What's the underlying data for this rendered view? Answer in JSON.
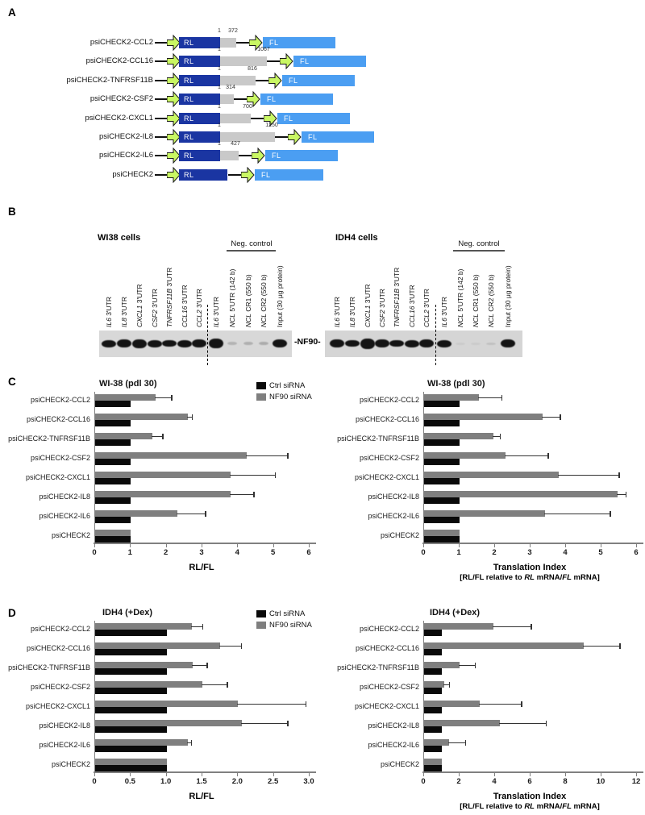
{
  "panels": {
    "a": {
      "label": "A"
    },
    "b": {
      "label": "B"
    },
    "c": {
      "label": "C"
    },
    "d": {
      "label": "D"
    }
  },
  "construct_diagram": {
    "rl_label": "RL",
    "fl_label": "FL",
    "colors": {
      "rl_box": "#1a35a2",
      "fl_box": "#4b9ef2",
      "utr_box": "#c9c9c9",
      "promoter_arrow": "#c9f763"
    },
    "constructs": [
      {
        "name": "psiCHECK2-CCL2",
        "utr_start": "1",
        "utr_end": "372",
        "utr_len": 372
      },
      {
        "name": "psiCHECK2-CCL16",
        "utr_start": "1",
        "utr_end": "1067",
        "utr_len": 1067
      },
      {
        "name": "psiCHECK2-TNFRSF11B",
        "utr_start": "1",
        "utr_end": "816",
        "utr_len": 816
      },
      {
        "name": "psiCHECK2-CSF2",
        "utr_start": "1",
        "utr_end": "314",
        "utr_len": 314
      },
      {
        "name": "psiCHECK2-CXCL1",
        "utr_start": "1",
        "utr_end": "700",
        "utr_len": 700
      },
      {
        "name": "psiCHECK2-IL8",
        "utr_start": "1",
        "utr_end": "1250",
        "utr_len": 1250
      },
      {
        "name": "psiCHECK2-IL6",
        "utr_start": "1",
        "utr_end": "427",
        "utr_len": 427
      },
      {
        "name": "psiCHECK2",
        "utr_start": null,
        "utr_end": null,
        "utr_len": 0
      }
    ]
  },
  "blot_section": {
    "band_label": "-NF90-",
    "blots": [
      {
        "title": "WI38 cells",
        "neg_control_label": "Neg. control",
        "lanes": [
          {
            "segments": [
              {
                "t": "IL6",
                "i": true
              },
              {
                "t": " 3'UTR",
                "i": false
              }
            ],
            "band": 1
          },
          {
            "segments": [
              {
                "t": "IL8",
                "i": true
              },
              {
                "t": " 3'UTR",
                "i": false
              }
            ],
            "band": 1
          },
          {
            "segments": [
              {
                "t": "CXCL1",
                "i": true
              },
              {
                "t": " 3'UTR",
                "i": false
              }
            ],
            "band": 1
          },
          {
            "segments": [
              {
                "t": "CSF2",
                "i": true
              },
              {
                "t": " 3'UTR",
                "i": false
              }
            ],
            "band": 1
          },
          {
            "segments": [
              {
                "t": "TNFRSF11B",
                "i": true
              },
              {
                "t": " 3'UTR",
                "i": false
              }
            ],
            "band": 1
          },
          {
            "segments": [
              {
                "t": "CCL16",
                "i": true
              },
              {
                "t": " 3'UTR",
                "i": false
              }
            ],
            "band": 1
          },
          {
            "segments": [
              {
                "t": "CCL2",
                "i": true
              },
              {
                "t": " 3'UTR",
                "i": false
              }
            ],
            "band": 1
          },
          {
            "segments": [
              {
                "t": "IL6",
                "i": true
              },
              {
                "t": " 3'UTR",
                "i": false
              }
            ],
            "band": 1
          },
          {
            "segments": [
              {
                "t": "NCL",
                "i": true
              },
              {
                "t": " 5'UTR (142 b)",
                "i": false
              }
            ],
            "band": 0.18
          },
          {
            "segments": [
              {
                "t": "NCL",
                "i": true
              },
              {
                "t": " CR1 (550 b)",
                "i": false
              }
            ],
            "band": 0.2
          },
          {
            "segments": [
              {
                "t": "NCL",
                "i": true
              },
              {
                "t": " CR2 (550 b)",
                "i": false
              }
            ],
            "band": 0.22
          },
          {
            "segments": [
              {
                "t": "Input (30 μg protein)",
                "i": false
              }
            ],
            "band": 1
          }
        ]
      },
      {
        "title": "IDH4 cells",
        "neg_control_label": "Neg. control",
        "lanes": [
          {
            "segments": [
              {
                "t": "IL6",
                "i": true
              },
              {
                "t": " 3'UTR",
                "i": false
              }
            ],
            "band": 1
          },
          {
            "segments": [
              {
                "t": "IL8",
                "i": true
              },
              {
                "t": " 3'UTR",
                "i": false
              }
            ],
            "band": 1
          },
          {
            "segments": [
              {
                "t": "CXCL1",
                "i": true
              },
              {
                "t": " 3'UTR",
                "i": false
              }
            ],
            "band": 1
          },
          {
            "segments": [
              {
                "t": "CSF2",
                "i": true
              },
              {
                "t": " 3'UTR",
                "i": false
              }
            ],
            "band": 1
          },
          {
            "segments": [
              {
                "t": "TNFRSF11B",
                "i": true
              },
              {
                "t": " 3'UTR",
                "i": false
              }
            ],
            "band": 1
          },
          {
            "segments": [
              {
                "t": "CCL16",
                "i": true
              },
              {
                "t": " 3'UTR",
                "i": false
              }
            ],
            "band": 1
          },
          {
            "segments": [
              {
                "t": "CCL2",
                "i": true
              },
              {
                "t": " 3'UTR",
                "i": false
              }
            ],
            "band": 1
          },
          {
            "segments": [
              {
                "t": "IL6",
                "i": true
              },
              {
                "t": " 3'UTR",
                "i": false
              }
            ],
            "band": 1
          },
          {
            "segments": [
              {
                "t": "NCL",
                "i": true
              },
              {
                "t": " 5'UTR (142 b)",
                "i": false
              }
            ],
            "band": 0.05
          },
          {
            "segments": [
              {
                "t": "NCL",
                "i": true
              },
              {
                "t": " CR1 (550 b)",
                "i": false
              }
            ],
            "band": 0.05
          },
          {
            "segments": [
              {
                "t": "NCL",
                "i": true
              },
              {
                "t": " CR2 (550 b)",
                "i": false
              }
            ],
            "band": 0.1
          },
          {
            "segments": [
              {
                "t": "Input (30 μg protein)",
                "i": false
              }
            ],
            "band": 1
          }
        ]
      }
    ]
  },
  "legend": {
    "items": [
      {
        "label": "Ctrl siRNA",
        "color": "#0a0a0a"
      },
      {
        "label": "NF90 siRNA",
        "color": "#7f7f7f"
      }
    ]
  },
  "chart_data": [
    {
      "id": "wi38_rlfl",
      "type": "bar",
      "orientation": "horizontal",
      "title": "WI-38 (pdl 30)",
      "xlabel": "RL/FL",
      "xlim": [
        0,
        6
      ],
      "xticks": [
        "0",
        "1",
        "2",
        "3",
        "4",
        "5",
        "6"
      ],
      "legend_visible": true,
      "legend_position": "top-right",
      "grid": false,
      "categories": [
        "psiCHECK2-CCL2",
        "psiCHECK2-CCL16",
        "psiCHECK2-TNFRSF11B",
        "psiCHECK2-CSF2",
        "psiCHECK2-CXCL1",
        "psiCHECK2-IL8",
        "psiCHECK2-IL6",
        "psiCHECK2"
      ],
      "series": [
        {
          "name": "NF90 siRNA",
          "color": "#7f7f7f",
          "values": [
            1.7,
            2.6,
            1.6,
            4.25,
            3.8,
            3.8,
            2.3,
            1.0
          ],
          "errors": [
            0.45,
            0.12,
            0.3,
            1.15,
            1.25,
            0.65,
            0.8,
            0
          ]
        },
        {
          "name": "Ctrl siRNA",
          "color": "#0a0a0a",
          "values": [
            1,
            1,
            1,
            1,
            1,
            1,
            1,
            1
          ],
          "errors": [
            0,
            0,
            0,
            0,
            0,
            0,
            0,
            0
          ]
        }
      ]
    },
    {
      "id": "wi38_translation_index",
      "type": "bar",
      "orientation": "horizontal",
      "title": "WI-38 (pdl 30)",
      "xlabel": "Translation Index",
      "xlabel2_segments": [
        {
          "t": "[RL/FL relative to ",
          "i": false
        },
        {
          "t": "RL",
          "i": true
        },
        {
          "t": " mRNA/",
          "i": false
        },
        {
          "t": "FL",
          "i": true
        },
        {
          "t": " mRNA]",
          "i": false
        }
      ],
      "xlim": [
        0,
        6
      ],
      "xticks": [
        "0",
        "1",
        "2",
        "3",
        "4",
        "5",
        "6"
      ],
      "legend_visible": false,
      "grid": false,
      "categories": [
        "psiCHECK2-CCL2",
        "psiCHECK2-CCL16",
        "psiCHECK2-TNFRSF11B",
        "psiCHECK2-CSF2",
        "psiCHECK2-CXCL1",
        "psiCHECK2-IL8",
        "psiCHECK2-IL6",
        "psiCHECK2"
      ],
      "series": [
        {
          "name": "NF90 siRNA",
          "color": "#7f7f7f",
          "values": [
            1.55,
            3.35,
            1.95,
            2.3,
            3.8,
            5.45,
            3.4,
            1.0
          ],
          "errors": [
            0.65,
            0.5,
            0.2,
            1.2,
            1.7,
            0.25,
            1.85,
            0
          ]
        },
        {
          "name": "Ctrl siRNA",
          "color": "#0a0a0a",
          "values": [
            1,
            1,
            1,
            1,
            1,
            1,
            1,
            1
          ],
          "errors": [
            0,
            0,
            0,
            0,
            0,
            0,
            0,
            0
          ]
        }
      ]
    },
    {
      "id": "idh4_rlfl",
      "type": "bar",
      "orientation": "horizontal",
      "title": "IDH4 (+Dex)",
      "xlabel": "RL/FL",
      "xlim": [
        0,
        3
      ],
      "xticks": [
        "0",
        "0.5",
        "1.0",
        "1.5",
        "2.0",
        "2.5",
        "3.0"
      ],
      "legend_visible": true,
      "legend_position": "top-right",
      "grid": false,
      "categories": [
        "psiCHECK2-CCL2",
        "psiCHECK2-CCL16",
        "psiCHECK2-TNFRSF11B",
        "psiCHECK2-CSF2",
        "psiCHECK2-CXCL1",
        "psiCHECK2-IL8",
        "psiCHECK2-IL6",
        "psiCHECK2"
      ],
      "series": [
        {
          "name": "NF90 siRNA",
          "color": "#7f7f7f",
          "values": [
            1.35,
            1.75,
            1.37,
            1.5,
            2.0,
            2.05,
            1.3,
            1.0
          ],
          "errors": [
            0.16,
            0.3,
            0.2,
            0.35,
            0.95,
            0.65,
            0.05,
            0
          ]
        },
        {
          "name": "Ctrl siRNA",
          "color": "#0a0a0a",
          "values": [
            1,
            1,
            1,
            1,
            1,
            1,
            1,
            1
          ],
          "errors": [
            0,
            0,
            0,
            0,
            0,
            0,
            0,
            0
          ]
        }
      ]
    },
    {
      "id": "idh4_translation_index",
      "type": "bar",
      "orientation": "horizontal",
      "title": "IDH4 (+Dex)",
      "xlabel": "Translation Index",
      "xlabel2_segments": [
        {
          "t": "[RL/FL relative to ",
          "i": false
        },
        {
          "t": "RL",
          "i": true
        },
        {
          "t": " mRNA/",
          "i": false
        },
        {
          "t": "FL",
          "i": true
        },
        {
          "t": " mRNA]",
          "i": false
        }
      ],
      "xlim": [
        0,
        12
      ],
      "xticks": [
        "0",
        "2",
        "4",
        "6",
        "8",
        "10",
        "12"
      ],
      "legend_visible": false,
      "grid": false,
      "categories": [
        "psiCHECK2-CCL2",
        "psiCHECK2-CCL16",
        "psiCHECK2-TNFRSF11B",
        "psiCHECK2-CSF2",
        "psiCHECK2-CXCL1",
        "psiCHECK2-IL8",
        "psiCHECK2-IL6",
        "psiCHECK2"
      ],
      "series": [
        {
          "name": "NF90 siRNA",
          "color": "#7f7f7f",
          "values": [
            3.9,
            9.0,
            2.0,
            1.15,
            3.15,
            4.25,
            1.4,
            1.0
          ],
          "errors": [
            2.15,
            2.05,
            0.9,
            0.3,
            2.35,
            2.65,
            0.95,
            0
          ]
        },
        {
          "name": "Ctrl siRNA",
          "color": "#0a0a0a",
          "values": [
            1,
            1,
            1,
            1,
            1,
            1,
            1,
            1
          ],
          "errors": [
            0,
            0,
            0,
            0,
            0,
            0,
            0,
            0
          ]
        }
      ]
    }
  ]
}
